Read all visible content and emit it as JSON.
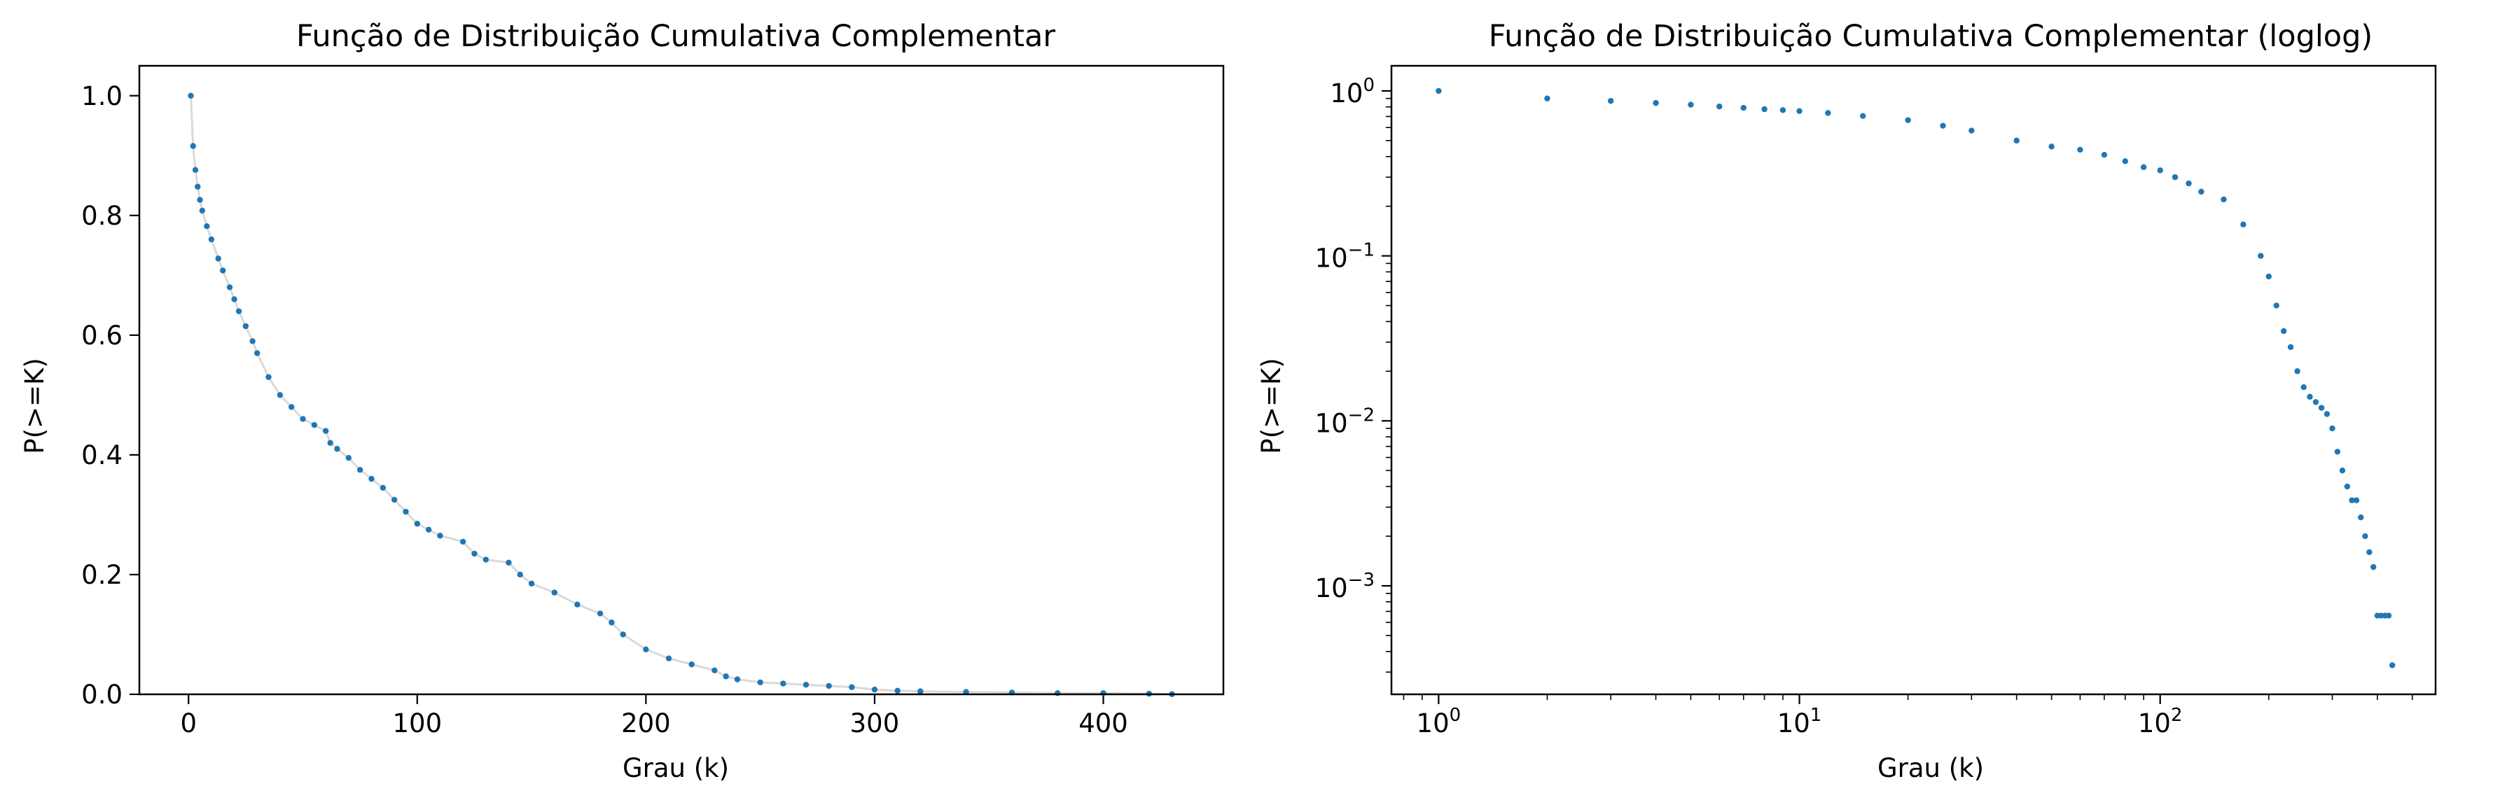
{
  "chart_data": [
    {
      "type": "scatter",
      "title": "Função de Distribuição Cumulativa Complementar",
      "xlabel": "Grau (k)",
      "ylabel": "P(>=K)",
      "xscale": "linear",
      "yscale": "linear",
      "xlim": [
        -21.5,
        452.5
      ],
      "ylim": [
        0.0,
        1.05
      ],
      "xticks": [
        0,
        100,
        200,
        300,
        400
      ],
      "xtick_labels": [
        "0",
        "100",
        "200",
        "300",
        "400"
      ],
      "yticks": [
        0.0,
        0.2,
        0.4,
        0.6,
        0.8,
        1.0
      ],
      "ytick_labels": [
        "0.0",
        "0.2",
        "0.4",
        "0.6",
        "0.8",
        "1.0"
      ],
      "grid": false,
      "legend": "none",
      "marker_color": "#1f77b4",
      "connector_color": "#d9d9d9",
      "series": [
        {
          "x": [
            1,
            2,
            3,
            4,
            5,
            6,
            8,
            10,
            13,
            15,
            18,
            20,
            22,
            25,
            28,
            30,
            35,
            40,
            45,
            50,
            55,
            60,
            62,
            65,
            70,
            75,
            80,
            85,
            90,
            95,
            100,
            105,
            110,
            120,
            125,
            130,
            140,
            145,
            150,
            160,
            170,
            180,
            185,
            190,
            200,
            210,
            220,
            230,
            235,
            240,
            250,
            260,
            270,
            280,
            290,
            300,
            310,
            320,
            340,
            360,
            380,
            400,
            420,
            430
          ],
          "y": [
            1.0,
            0.916,
            0.876,
            0.848,
            0.826,
            0.808,
            0.782,
            0.76,
            0.728,
            0.708,
            0.68,
            0.66,
            0.64,
            0.615,
            0.59,
            0.57,
            0.53,
            0.5,
            0.48,
            0.46,
            0.45,
            0.44,
            0.42,
            0.41,
            0.395,
            0.375,
            0.36,
            0.345,
            0.325,
            0.305,
            0.285,
            0.275,
            0.265,
            0.255,
            0.235,
            0.225,
            0.22,
            0.2,
            0.185,
            0.17,
            0.15,
            0.135,
            0.12,
            0.1,
            0.075,
            0.06,
            0.05,
            0.04,
            0.03,
            0.025,
            0.02,
            0.018,
            0.016,
            0.014,
            0.012,
            0.008,
            0.006,
            0.005,
            0.004,
            0.003,
            0.002,
            0.002,
            0.001,
            0.0003
          ]
        }
      ]
    },
    {
      "type": "scatter",
      "title": "Função de Distribuição Cumulativa Complementar (loglog)",
      "xlabel": "Grau (k)",
      "ylabel": "P(>=K)",
      "xscale": "log",
      "yscale": "log",
      "xlim": [
        0.74,
        580
      ],
      "ylim": [
        0.00022,
        1.42
      ],
      "xticks": [
        1,
        10,
        100
      ],
      "xtick_labels": [
        {
          "base": "10",
          "exp": "0"
        },
        {
          "base": "10",
          "exp": "1"
        },
        {
          "base": "10",
          "exp": "2"
        }
      ],
      "yticks": [
        1,
        0.1,
        0.01,
        0.001
      ],
      "ytick_labels": [
        {
          "base": "10",
          "exp": "0"
        },
        {
          "base": "10",
          "exp": "−1"
        },
        {
          "base": "10",
          "exp": "−2"
        },
        {
          "base": "10",
          "exp": "−3"
        }
      ],
      "grid": false,
      "legend": "none",
      "marker_color": "#1f77b4",
      "series": [
        {
          "x": [
            1,
            2,
            3,
            4,
            5,
            6,
            7,
            8,
            9,
            10,
            12,
            15,
            20,
            25,
            30,
            40,
            50,
            60,
            70,
            80,
            90,
            100,
            110,
            120,
            130,
            150,
            170,
            190,
            200,
            210,
            220,
            230,
            240,
            250,
            260,
            270,
            280,
            290,
            300,
            310,
            320,
            330,
            340,
            350,
            360,
            370,
            380,
            390,
            400,
            410,
            420,
            430,
            440
          ],
          "y": [
            1.0,
            0.9,
            0.87,
            0.845,
            0.825,
            0.805,
            0.79,
            0.775,
            0.765,
            0.755,
            0.735,
            0.705,
            0.665,
            0.615,
            0.575,
            0.5,
            0.46,
            0.44,
            0.41,
            0.375,
            0.345,
            0.33,
            0.3,
            0.275,
            0.245,
            0.22,
            0.155,
            0.1,
            0.075,
            0.05,
            0.035,
            0.028,
            0.02,
            0.016,
            0.014,
            0.013,
            0.012,
            0.011,
            0.009,
            0.0065,
            0.005,
            0.004,
            0.0033,
            0.0033,
            0.0026,
            0.002,
            0.0016,
            0.0013,
            0.00066,
            0.00066,
            0.00066,
            0.00066,
            0.00033
          ]
        }
      ]
    }
  ]
}
